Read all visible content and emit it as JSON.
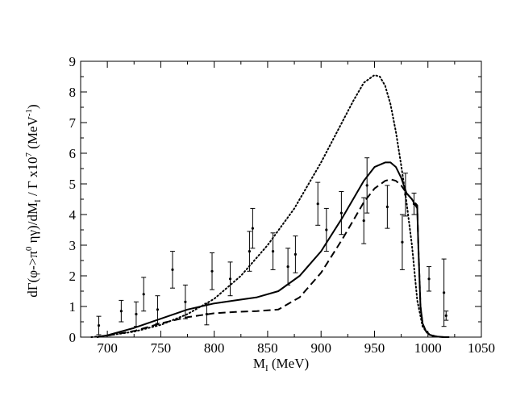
{
  "chart_data": {
    "type": "line",
    "title": "",
    "xlabel": {
      "main": "M",
      "sub": "I",
      "rest": " (MeV)"
    },
    "ylabel": {
      "p1": "dΓ(φ->π",
      "sup0": "0",
      "p2": " ηγ)/dM",
      "subI": "I",
      "p3": " / Γ  x10",
      "sup7": "7",
      "p4": " (MeV",
      "supm1": "-1",
      "p5": ")"
    },
    "xlim": [
      675,
      1050
    ],
    "ylim": [
      0,
      9
    ],
    "xticks": [
      700,
      750,
      800,
      850,
      900,
      950,
      1000,
      1050
    ],
    "yticks": [
      0,
      1,
      2,
      3,
      4,
      5,
      6,
      7,
      8,
      9
    ],
    "series": [
      {
        "name": "dotted",
        "style": "dotted",
        "x": [
          685,
          700,
          725,
          750,
          775,
          800,
          825,
          850,
          875,
          900,
          915,
          930,
          940,
          950,
          955,
          960,
          965,
          970,
          975,
          980,
          985,
          990,
          995,
          1000,
          1005,
          1010,
          1015,
          1020
        ],
        "y": [
          0.0,
          0.05,
          0.18,
          0.4,
          0.75,
          1.25,
          2.0,
          3.0,
          4.2,
          5.7,
          6.7,
          7.7,
          8.3,
          8.55,
          8.5,
          8.2,
          7.6,
          6.7,
          5.6,
          4.4,
          3.0,
          1.2,
          0.35,
          0.1,
          0.03,
          0.01,
          0.0,
          0.0
        ]
      },
      {
        "name": "solid",
        "style": "solid",
        "x": [
          690,
          700,
          725,
          750,
          775,
          800,
          820,
          840,
          860,
          880,
          900,
          920,
          940,
          950,
          960,
          965,
          970,
          975,
          980,
          985,
          990,
          991,
          993,
          995,
          998,
          1002,
          1008,
          1015,
          1020
        ],
        "y": [
          0.0,
          0.06,
          0.3,
          0.6,
          0.9,
          1.1,
          1.2,
          1.3,
          1.5,
          2.0,
          2.8,
          3.9,
          5.1,
          5.55,
          5.7,
          5.7,
          5.55,
          5.2,
          4.7,
          4.5,
          4.2,
          3.0,
          1.0,
          0.45,
          0.2,
          0.07,
          0.02,
          0.0,
          0.0
        ]
      },
      {
        "name": "dashed",
        "style": "dashed",
        "x": [
          690,
          700,
          725,
          750,
          775,
          800,
          820,
          840,
          860,
          880,
          900,
          920,
          940,
          950,
          960,
          965,
          970,
          975,
          980,
          985,
          990,
          991,
          993,
          995,
          998,
          1002,
          1008,
          1015,
          1020
        ],
        "y": [
          0.0,
          0.05,
          0.2,
          0.45,
          0.65,
          0.78,
          0.82,
          0.85,
          0.9,
          1.3,
          2.1,
          3.2,
          4.4,
          4.85,
          5.1,
          5.15,
          5.1,
          4.95,
          4.7,
          4.5,
          4.3,
          3.0,
          1.0,
          0.45,
          0.2,
          0.07,
          0.02,
          0.0,
          0.0
        ]
      }
    ],
    "data_points": [
      {
        "x": 692,
        "y": 0.38,
        "err": 0.3
      },
      {
        "x": 713,
        "y": 0.85,
        "err": 0.35
      },
      {
        "x": 727,
        "y": 0.75,
        "err": 0.4
      },
      {
        "x": 734,
        "y": 1.4,
        "err": 0.55
      },
      {
        "x": 747,
        "y": 0.9,
        "err": 0.45
      },
      {
        "x": 761,
        "y": 2.2,
        "err": 0.6
      },
      {
        "x": 773,
        "y": 1.15,
        "err": 0.55
      },
      {
        "x": 793,
        "y": 0.75,
        "err": 0.35
      },
      {
        "x": 798,
        "y": 2.15,
        "err": 0.6
      },
      {
        "x": 815,
        "y": 1.9,
        "err": 0.55
      },
      {
        "x": 833,
        "y": 2.8,
        "err": 0.65
      },
      {
        "x": 836,
        "y": 3.55,
        "err": 0.65
      },
      {
        "x": 855,
        "y": 2.8,
        "err": 0.6
      },
      {
        "x": 869,
        "y": 2.3,
        "err": 0.6
      },
      {
        "x": 876,
        "y": 2.7,
        "err": 0.6
      },
      {
        "x": 897,
        "y": 4.35,
        "err": 0.7
      },
      {
        "x": 905,
        "y": 3.5,
        "err": 0.7
      },
      {
        "x": 919,
        "y": 4.05,
        "err": 0.7
      },
      {
        "x": 940,
        "y": 3.8,
        "err": 0.75
      },
      {
        "x": 943,
        "y": 4.95,
        "err": 0.9
      },
      {
        "x": 962,
        "y": 4.25,
        "err": 0.7
      },
      {
        "x": 976,
        "y": 3.1,
        "err": 0.9
      },
      {
        "x": 979,
        "y": 4.65,
        "err": 0.7
      },
      {
        "x": 987,
        "y": 4.35,
        "err": 0.35
      },
      {
        "x": 1001,
        "y": 1.9,
        "err": 0.4
      },
      {
        "x": 1015,
        "y": 1.45,
        "err": 1.1
      },
      {
        "x": 1017,
        "y": 0.7,
        "err": 0.15
      }
    ]
  }
}
